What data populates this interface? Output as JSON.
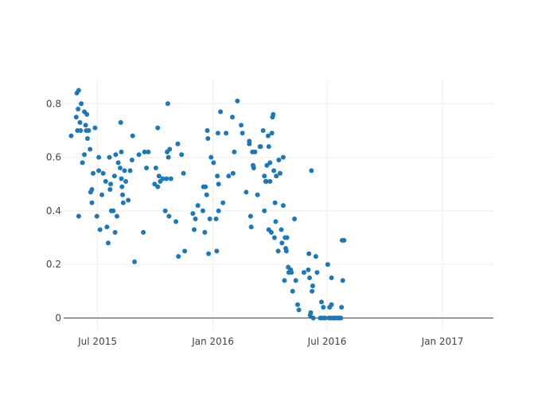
{
  "chart_data": {
    "type": "scatter",
    "title": "",
    "xlabel": "",
    "ylabel": "",
    "marker_color": "#1f77b4",
    "grid": true,
    "xlim": [
      "2015-05-08",
      "2017-03-23"
    ],
    "ylim": [
      -0.046,
      0.89
    ],
    "x_ticks": [
      {
        "value": "2015-07-01",
        "label": "Jul 2015"
      },
      {
        "value": "2016-01-01",
        "label": "Jan 2016"
      },
      {
        "value": "2016-07-01",
        "label": "Jul 2016"
      },
      {
        "value": "2017-01-01",
        "label": "Jan 2017"
      }
    ],
    "y_ticks": [
      {
        "value": 0,
        "label": "0"
      },
      {
        "value": 0.2,
        "label": "0.2"
      },
      {
        "value": 0.4,
        "label": "0.4"
      },
      {
        "value": 0.6,
        "label": "0.6"
      },
      {
        "value": 0.8,
        "label": "0.8"
      }
    ],
    "series": [
      {
        "points": [
          [
            "2015-05-20",
            0.68
          ],
          [
            "2015-05-28",
            0.75
          ],
          [
            "2015-05-29",
            0.84
          ],
          [
            "2015-05-30",
            0.7
          ],
          [
            "2015-05-31",
            0.78
          ],
          [
            "2015-06-01",
            0.85
          ],
          [
            "2015-06-01",
            0.38
          ],
          [
            "2015-06-03",
            0.73
          ],
          [
            "2015-06-04",
            0.7
          ],
          [
            "2015-06-05",
            0.8
          ],
          [
            "2015-06-07",
            0.58
          ],
          [
            "2015-06-10",
            0.77
          ],
          [
            "2015-06-10",
            0.61
          ],
          [
            "2015-06-12",
            0.72
          ],
          [
            "2015-06-13",
            0.7
          ],
          [
            "2015-06-14",
            0.76
          ],
          [
            "2015-06-15",
            0.67
          ],
          [
            "2015-06-17",
            0.7
          ],
          [
            "2015-06-19",
            0.63
          ],
          [
            "2015-06-20",
            0.47
          ],
          [
            "2015-06-22",
            0.48
          ],
          [
            "2015-06-22",
            0.43
          ],
          [
            "2015-06-24",
            0.54
          ],
          [
            "2015-06-27",
            0.71
          ],
          [
            "2015-06-30",
            0.38
          ],
          [
            "2015-07-03",
            0.6
          ],
          [
            "2015-07-03",
            0.55
          ],
          [
            "2015-07-05",
            0.33
          ],
          [
            "2015-07-08",
            0.46
          ],
          [
            "2015-07-10",
            0.54
          ],
          [
            "2015-07-14",
            0.51
          ],
          [
            "2015-07-16",
            0.34
          ],
          [
            "2015-07-18",
            0.28
          ],
          [
            "2015-07-20",
            0.6
          ],
          [
            "2015-07-21",
            0.48
          ],
          [
            "2015-07-22",
            0.5
          ],
          [
            "2015-07-23",
            0.4
          ],
          [
            "2015-07-26",
            0.4
          ],
          [
            "2015-07-28",
            0.53
          ],
          [
            "2015-07-29",
            0.32
          ],
          [
            "2015-07-30",
            0.61
          ],
          [
            "2015-08-01",
            0.38
          ],
          [
            "2015-08-03",
            0.58
          ],
          [
            "2015-08-06",
            0.56
          ],
          [
            "2015-08-07",
            0.73
          ],
          [
            "2015-08-08",
            0.62
          ],
          [
            "2015-08-08",
            0.52
          ],
          [
            "2015-08-09",
            0.49
          ],
          [
            "2015-08-10",
            0.46
          ],
          [
            "2015-08-11",
            0.43
          ],
          [
            "2015-08-13",
            0.55
          ],
          [
            "2015-08-15",
            0.51
          ],
          [
            "2015-08-19",
            0.44
          ],
          [
            "2015-08-22",
            0.55
          ],
          [
            "2015-08-25",
            0.59
          ],
          [
            "2015-08-26",
            0.68
          ],
          [
            "2015-08-29",
            0.21
          ],
          [
            "2015-09-05",
            0.61
          ],
          [
            "2015-09-12",
            0.32
          ],
          [
            "2015-09-14",
            0.62
          ],
          [
            "2015-09-17",
            0.56
          ],
          [
            "2015-09-20",
            0.62
          ],
          [
            "2015-09-30",
            0.5
          ],
          [
            "2015-10-02",
            0.56
          ],
          [
            "2015-10-05",
            0.71
          ],
          [
            "2015-10-05",
            0.49
          ],
          [
            "2015-10-07",
            0.53
          ],
          [
            "2015-10-09",
            0.51
          ],
          [
            "2015-10-13",
            0.52
          ],
          [
            "2015-10-17",
            0.4
          ],
          [
            "2015-10-19",
            0.52
          ],
          [
            "2015-10-20",
            0.62
          ],
          [
            "2015-10-21",
            0.8
          ],
          [
            "2015-10-22",
            0.6
          ],
          [
            "2015-10-23",
            0.38
          ],
          [
            "2015-10-24",
            0.63
          ],
          [
            "2015-10-26",
            0.52
          ],
          [
            "2015-11-03",
            0.36
          ],
          [
            "2015-11-06",
            0.65
          ],
          [
            "2015-11-07",
            0.23
          ],
          [
            "2015-11-12",
            0.61
          ],
          [
            "2015-11-15",
            0.54
          ],
          [
            "2015-11-17",
            0.25
          ],
          [
            "2015-11-30",
            0.39
          ],
          [
            "2015-12-02",
            0.33
          ],
          [
            "2015-12-04",
            0.37
          ],
          [
            "2015-12-08",
            0.42
          ],
          [
            "2015-12-16",
            0.4
          ],
          [
            "2015-12-17",
            0.49
          ],
          [
            "2015-12-19",
            0.32
          ],
          [
            "2015-12-20",
            0.49
          ],
          [
            "2015-12-22",
            0.46
          ],
          [
            "2015-12-23",
            0.7
          ],
          [
            "2015-12-24",
            0.67
          ],
          [
            "2015-12-25",
            0.24
          ],
          [
            "2015-12-27",
            0.37
          ],
          [
            "2015-12-29",
            0.6
          ],
          [
            "2016-01-02",
            0.58
          ],
          [
            "2016-01-06",
            0.37
          ],
          [
            "2016-01-07",
            0.25
          ],
          [
            "2016-01-08",
            0.53
          ],
          [
            "2016-01-09",
            0.69
          ],
          [
            "2016-01-10",
            0.5
          ],
          [
            "2016-01-10",
            0.4
          ],
          [
            "2016-01-13",
            0.77
          ],
          [
            "2016-01-17",
            0.43
          ],
          [
            "2016-01-22",
            0.69
          ],
          [
            "2016-01-26",
            0.53
          ],
          [
            "2016-02-01",
            0.75
          ],
          [
            "2016-02-02",
            0.54
          ],
          [
            "2016-02-04",
            0.62
          ],
          [
            "2016-02-09",
            0.81
          ],
          [
            "2016-02-15",
            0.72
          ],
          [
            "2016-02-17",
            0.69
          ],
          [
            "2016-02-23",
            0.47
          ],
          [
            "2016-02-28",
            0.66
          ],
          [
            "2016-02-28",
            0.65
          ],
          [
            "2016-03-01",
            0.38
          ],
          [
            "2016-03-02",
            0.34
          ],
          [
            "2016-03-04",
            0.62
          ],
          [
            "2016-03-05",
            0.57
          ],
          [
            "2016-03-06",
            0.56
          ],
          [
            "2016-03-08",
            0.62
          ],
          [
            "2016-03-12",
            0.46
          ],
          [
            "2016-03-16",
            0.64
          ],
          [
            "2016-03-17",
            0.64
          ],
          [
            "2016-03-21",
            0.7
          ],
          [
            "2016-03-23",
            0.53
          ],
          [
            "2016-03-23",
            0.4
          ],
          [
            "2016-03-25",
            0.51
          ],
          [
            "2016-03-26",
            0.51
          ],
          [
            "2016-03-27",
            0.57
          ],
          [
            "2016-03-29",
            0.68
          ],
          [
            "2016-03-30",
            0.33
          ],
          [
            "2016-03-30",
            0.64
          ],
          [
            "2016-04-01",
            0.51
          ],
          [
            "2016-04-01",
            0.58
          ],
          [
            "2016-04-03",
            0.32
          ],
          [
            "2016-04-04",
            0.69
          ],
          [
            "2016-04-05",
            0.75
          ],
          [
            "2016-04-06",
            0.76
          ],
          [
            "2016-04-07",
            0.55
          ],
          [
            "2016-04-08",
            0.3
          ],
          [
            "2016-04-09",
            0.43
          ],
          [
            "2016-04-10",
            0.36
          ],
          [
            "2016-04-11",
            0.53
          ],
          [
            "2016-04-14",
            0.25
          ],
          [
            "2016-04-15",
            0.59
          ],
          [
            "2016-04-17",
            0.54
          ],
          [
            "2016-04-19",
            0.33
          ],
          [
            "2016-04-20",
            0.28
          ],
          [
            "2016-04-22",
            0.6
          ],
          [
            "2016-04-22",
            0.42
          ],
          [
            "2016-04-24",
            0.14
          ],
          [
            "2016-04-25",
            0.3
          ],
          [
            "2016-04-26",
            0.26
          ],
          [
            "2016-04-27",
            0.25
          ],
          [
            "2016-04-28",
            0.3
          ],
          [
            "2016-04-30",
            0.19
          ],
          [
            "2016-05-01",
            0.17
          ],
          [
            "2016-05-04",
            0.18
          ],
          [
            "2016-05-05",
            0.17
          ],
          [
            "2016-05-07",
            0.1
          ],
          [
            "2016-05-10",
            0.37
          ],
          [
            "2016-05-12",
            0.14
          ],
          [
            "2016-05-15",
            0.05
          ],
          [
            "2016-05-17",
            0.03
          ],
          [
            "2016-05-25",
            0.17
          ],
          [
            "2016-06-01",
            0.18
          ],
          [
            "2016-06-02",
            0.24
          ],
          [
            "2016-06-03",
            0.15
          ],
          [
            "2016-06-04",
            0.01
          ],
          [
            "2016-06-05",
            0.02
          ],
          [
            "2016-06-06",
            0.55
          ],
          [
            "2016-06-07",
            0.1
          ],
          [
            "2016-06-08",
            0.12
          ],
          [
            "2016-06-09",
            0.0
          ],
          [
            "2016-06-13",
            0.23
          ],
          [
            "2016-06-15",
            0.17
          ],
          [
            "2016-06-20",
            0.0
          ],
          [
            "2016-06-22",
            0.06
          ],
          [
            "2016-06-23",
            0.0
          ],
          [
            "2016-06-25",
            0.04
          ],
          [
            "2016-06-27",
            0.0
          ],
          [
            "2016-06-28",
            0.0
          ],
          [
            "2016-07-02",
            0.2
          ],
          [
            "2016-07-04",
            0.0
          ],
          [
            "2016-07-05",
            0.04
          ],
          [
            "2016-07-06",
            0.0
          ],
          [
            "2016-07-08",
            0.05
          ],
          [
            "2016-07-08",
            0.15
          ],
          [
            "2016-07-10",
            0.0
          ],
          [
            "2016-07-11",
            0.0
          ],
          [
            "2016-07-14",
            0.0
          ],
          [
            "2016-07-15",
            0.0
          ],
          [
            "2016-07-18",
            0.0
          ],
          [
            "2016-07-20",
            0.0
          ],
          [
            "2016-07-23",
            0.0
          ],
          [
            "2016-07-24",
            0.04
          ],
          [
            "2016-07-25",
            0.29
          ],
          [
            "2016-07-26",
            0.14
          ],
          [
            "2016-07-28",
            0.29
          ]
        ]
      }
    ]
  }
}
